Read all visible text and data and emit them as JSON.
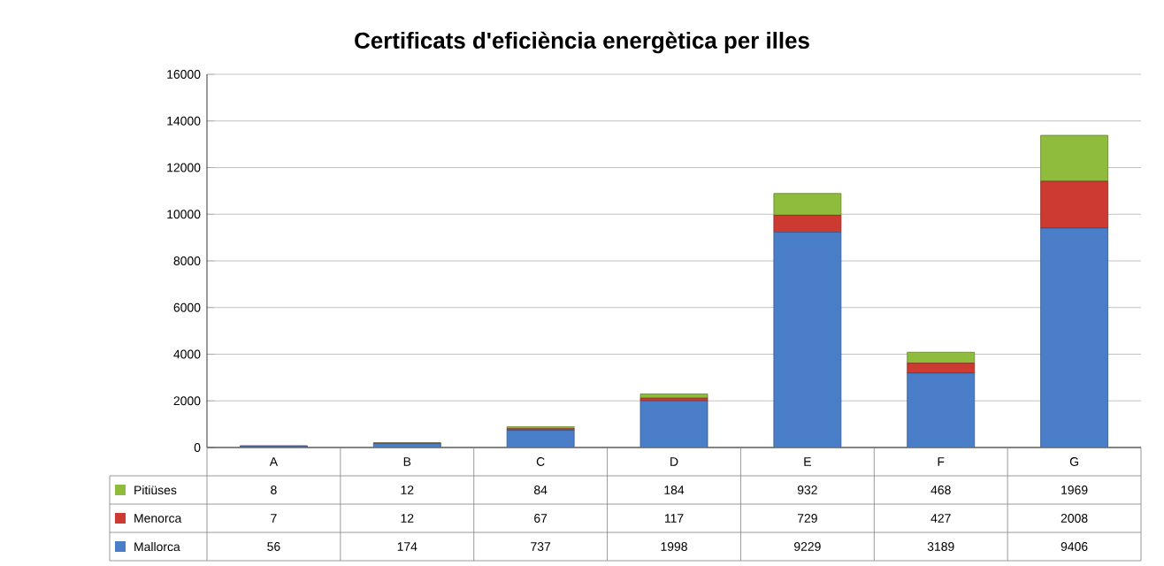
{
  "chart_data": {
    "type": "bar",
    "title": "Certificats d'eficiència energètica per illes",
    "categories": [
      "A",
      "B",
      "C",
      "D",
      "E",
      "F",
      "G"
    ],
    "series": [
      {
        "name": "Mallorca",
        "color": "#4a7ec8",
        "values": [
          56,
          174,
          737,
          1998,
          9229,
          3189,
          9406
        ]
      },
      {
        "name": "Menorca",
        "color": "#cc3a32",
        "values": [
          7,
          12,
          67,
          117,
          729,
          427,
          2008
        ]
      },
      {
        "name": "Pitiüses",
        "color": "#8fbc3c",
        "values": [
          8,
          12,
          84,
          184,
          932,
          468,
          1969
        ]
      }
    ],
    "stacked": true,
    "ylim": [
      0,
      16000
    ],
    "yticks": [
      0,
      2000,
      4000,
      6000,
      8000,
      10000,
      12000,
      14000,
      16000
    ],
    "grid": "y",
    "legend": "bottom left",
    "data_labels": true
  }
}
